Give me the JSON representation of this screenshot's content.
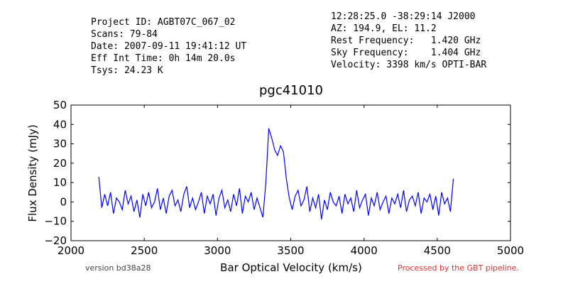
{
  "header": {
    "left_lines": [
      "Project ID: AGBT07C_067_02",
      "Scans: 79-84",
      "Date: 2007-09-11 19:41:12 UT",
      "Eff Int Time: 0h 14m 20.0s",
      "Tsys: 24.23 K"
    ],
    "right_lines": [
      "12:28:25.0 -38:29:14 J2000",
      "AZ: 194.9, EL: 11.2",
      "Rest Frequency:   1.420 GHz",
      "Sky Frequency:    1.404 GHz",
      "Velocity: 3398 km/s OPTI-BAR"
    ]
  },
  "chart_data": {
    "type": "line",
    "title": "pgc41010",
    "xlabel": "Bar Optical Velocity (km/s)",
    "ylabel": "Flux Density (mJy)",
    "color": "#0000ff",
    "x": [
      2190,
      2210,
      2230,
      2250,
      2270,
      2290,
      2310,
      2330,
      2350,
      2370,
      2390,
      2410,
      2430,
      2450,
      2470,
      2490,
      2510,
      2530,
      2550,
      2570,
      2590,
      2610,
      2630,
      2650,
      2670,
      2690,
      2710,
      2730,
      2750,
      2770,
      2790,
      2810,
      2830,
      2850,
      2870,
      2890,
      2910,
      2930,
      2950,
      2970,
      2990,
      3010,
      3030,
      3050,
      3070,
      3090,
      3110,
      3130,
      3150,
      3170,
      3190,
      3210,
      3230,
      3250,
      3270,
      3290,
      3310,
      3330,
      3350,
      3370,
      3390,
      3410,
      3430,
      3450,
      3470,
      3490,
      3510,
      3530,
      3550,
      3570,
      3590,
      3610,
      3630,
      3650,
      3670,
      3690,
      3710,
      3730,
      3750,
      3770,
      3790,
      3810,
      3830,
      3850,
      3870,
      3890,
      3910,
      3930,
      3950,
      3970,
      3990,
      4010,
      4030,
      4050,
      4070,
      4090,
      4110,
      4130,
      4150,
      4170,
      4190,
      4210,
      4230,
      4250,
      4270,
      4290,
      4310,
      4330,
      4350,
      4370,
      4390,
      4410,
      4430,
      4450,
      4470,
      4490,
      4510,
      4530,
      4550,
      4570,
      4590,
      4610
    ],
    "values": [
      13,
      -3,
      4,
      -2,
      5,
      -6,
      2,
      0,
      -4,
      6,
      -1,
      3,
      -5,
      1,
      -8,
      4,
      -2,
      5,
      -3,
      0,
      7,
      -4,
      2,
      -6,
      3,
      6,
      -2,
      1,
      -5,
      4,
      8,
      -3,
      2,
      -4,
      0,
      5,
      -6,
      3,
      -1,
      4,
      -7,
      2,
      6,
      -3,
      1,
      -5,
      4,
      -2,
      7,
      -6,
      3,
      0,
      5,
      -4,
      2,
      -3,
      -8,
      10,
      38,
      33,
      27,
      24,
      29,
      26,
      12,
      2,
      -4,
      3,
      6,
      -2,
      1,
      8,
      -5,
      2,
      -3,
      4,
      -9,
      1,
      -4,
      5,
      0,
      -2,
      3,
      -6,
      4,
      -1,
      2,
      -5,
      6,
      -3,
      1,
      4,
      -7,
      2,
      -2,
      5,
      -4,
      0,
      3,
      -6,
      2,
      -1,
      4,
      -3,
      6,
      -5,
      1,
      3,
      -2,
      5,
      -6,
      2,
      0,
      4,
      -4,
      3,
      -7,
      5,
      -1,
      2,
      -5,
      12
    ],
    "xlim": [
      2000,
      5000
    ],
    "ylim": [
      -20,
      50
    ],
    "xticks": [
      2000,
      2500,
      3000,
      3500,
      4000,
      4500,
      5000
    ],
    "yticks": [
      {
        "value": -20,
        "label": "−20"
      },
      {
        "value": -10,
        "label": "−10"
      },
      0,
      10,
      20,
      30,
      40,
      50
    ]
  },
  "footer": {
    "version": "version bd38a28",
    "pipeline": "Processed by the GBT pipeline."
  }
}
